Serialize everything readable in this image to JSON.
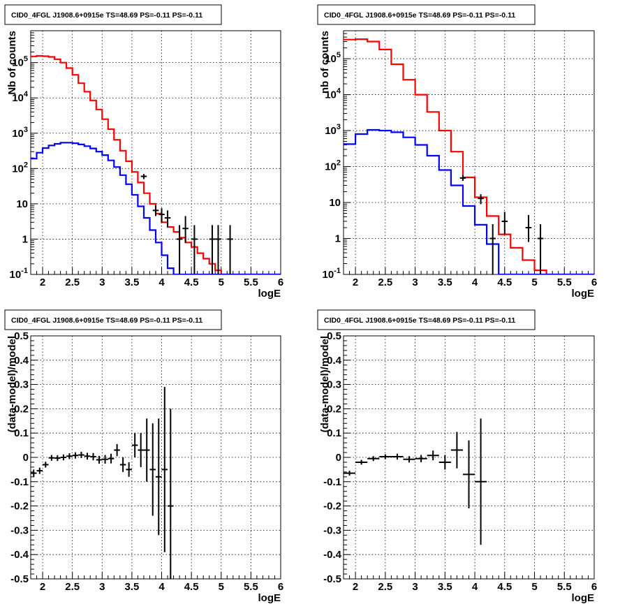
{
  "figure": {
    "background": "#ffffff"
  },
  "chart_data": [
    {
      "type": "line",
      "title": "CID0_4FGL J1908.6+0915e TS=48.69 PS=-0.11 PS=-0.11",
      "xlabel": "logE",
      "ylabel": "Nb of counts",
      "xlim": [
        1.8,
        6.0
      ],
      "ylim": [
        0.1,
        800000
      ],
      "yscale": "log",
      "grid": true,
      "xticks": [
        "2",
        "2.5",
        "3",
        "3.5",
        "4",
        "4.5",
        "5",
        "5.5",
        "6"
      ],
      "yticks": [
        "10^-1",
        "1",
        "10",
        "10^2",
        "10^3",
        "10^4",
        "10^5"
      ],
      "series": [
        {
          "kind": "step",
          "color": "#ff0000",
          "x": [
            1.8,
            1.9,
            2.0,
            2.1,
            2.2,
            2.3,
            2.4,
            2.5,
            2.6,
            2.7,
            2.8,
            2.9,
            3.0,
            3.1,
            3.2,
            3.3,
            3.4,
            3.5,
            3.6,
            3.7,
            3.8,
            3.9,
            4.0,
            4.1,
            4.2,
            4.3,
            4.4,
            4.5,
            4.6,
            4.7,
            4.8,
            4.9,
            5.0
          ],
          "values": [
            150000,
            155000,
            152000,
            145000,
            125000,
            100000,
            70000,
            45000,
            26000,
            15000,
            8500,
            4700,
            2500,
            1300,
            650,
            320,
            160,
            80,
            40,
            20,
            10,
            5.3,
            3.0,
            2.2,
            1.6,
            1.1,
            0.8,
            0.6,
            0.4,
            0.28,
            0.2,
            0.13,
            0.1
          ]
        },
        {
          "kind": "step",
          "color": "#0000ff",
          "x": [
            1.8,
            1.9,
            2.0,
            2.1,
            2.2,
            2.3,
            2.4,
            2.5,
            2.6,
            2.7,
            2.8,
            2.9,
            3.0,
            3.1,
            3.2,
            3.3,
            3.4,
            3.5,
            3.6,
            3.7,
            3.8,
            3.9,
            4.0,
            4.1,
            4.2
          ],
          "values": [
            190,
            280,
            380,
            450,
            500,
            540,
            540,
            520,
            480,
            430,
            370,
            300,
            240,
            170,
            110,
            65,
            36,
            18,
            8.5,
            4.0,
            1.8,
            0.8,
            0.35,
            0.15,
            0.1
          ]
        },
        {
          "kind": "errorbar",
          "color": "#000000",
          "points": [
            {
              "x": 3.7,
              "y": 60,
              "lo": 50,
              "hi": 70
            },
            {
              "x": 3.9,
              "y": 6.5,
              "lo": 4.5,
              "hi": 9
            },
            {
              "x": 4.0,
              "y": 5,
              "lo": 3,
              "hi": 7.5
            },
            {
              "x": 4.1,
              "y": 4,
              "lo": 2.2,
              "hi": 6.5
            },
            {
              "x": 4.3,
              "y": 1,
              "lo": 0.1,
              "hi": 2.5
            },
            {
              "x": 4.4,
              "y": 2,
              "lo": 0.8,
              "hi": 4.5
            },
            {
              "x": 4.55,
              "y": 1,
              "lo": 0.1,
              "hi": 2.5
            },
            {
              "x": 4.85,
              "y": 1,
              "lo": 0.1,
              "hi": 2.5
            },
            {
              "x": 4.95,
              "y": 1,
              "lo": 0.1,
              "hi": 2.5
            },
            {
              "x": 5.15,
              "y": 1,
              "lo": 0.1,
              "hi": 2.5
            }
          ]
        }
      ]
    },
    {
      "type": "line",
      "title": "CID0_4FGL J1908.6+0915e TS=48.69 PS=-0.11 PS=-0.11",
      "xlabel": "logE",
      "ylabel": "nb of counts",
      "xlim": [
        1.8,
        6.0
      ],
      "ylim": [
        0.1,
        600000
      ],
      "yscale": "log",
      "grid": true,
      "xticks": [
        "2",
        "2.5",
        "3",
        "3.5",
        "4",
        "4.5",
        "5",
        "5.5",
        "6"
      ],
      "yticks": [
        "10^-1",
        "1",
        "10",
        "10^2",
        "10^3",
        "10^4",
        "10^5"
      ],
      "series": [
        {
          "kind": "step",
          "color": "#ff0000",
          "x": [
            1.8,
            2.0,
            2.2,
            2.4,
            2.6,
            2.8,
            3.0,
            3.2,
            3.4,
            3.6,
            3.8,
            4.0,
            4.2,
            4.4,
            4.6,
            4.8,
            5.0,
            5.2
          ],
          "values": [
            340000,
            350000,
            300000,
            180000,
            70000,
            26000,
            10000,
            3300,
            1000,
            260,
            50,
            14,
            4.2,
            1.3,
            0.55,
            0.25,
            0.13,
            0.1
          ]
        },
        {
          "kind": "step",
          "color": "#0000ff",
          "x": [
            1.8,
            2.0,
            2.2,
            2.4,
            2.6,
            2.8,
            3.0,
            3.2,
            3.4,
            3.6,
            3.8,
            4.0,
            4.2,
            4.4
          ],
          "values": [
            420,
            800,
            1050,
            1000,
            900,
            650,
            400,
            200,
            80,
            30,
            8,
            2.4,
            0.7,
            0.1
          ]
        },
        {
          "kind": "errorbar",
          "color": "#000000",
          "points": [
            {
              "x": 3.8,
              "y": 48,
              "lo": 40,
              "hi": 58
            },
            {
              "x": 4.1,
              "y": 13,
              "lo": 9,
              "hi": 17
            },
            {
              "x": 4.3,
              "y": 1,
              "lo": 0.1,
              "hi": 2.5
            },
            {
              "x": 4.5,
              "y": 3,
              "lo": 1.3,
              "hi": 5.5
            },
            {
              "x": 4.9,
              "y": 2,
              "lo": 0.8,
              "hi": 4.5
            },
            {
              "x": 5.1,
              "y": 1,
              "lo": 0.1,
              "hi": 2.5
            }
          ]
        }
      ]
    },
    {
      "type": "scatter",
      "title": "CID0_4FGL J1908.6+0915e TS=48.69 PS=-0.11 PS=-0.11",
      "xlabel": "logE",
      "ylabel": "(data-model)/model",
      "xlim": [
        1.8,
        6.0
      ],
      "ylim": [
        -0.5,
        0.5
      ],
      "grid": true,
      "xticks": [
        "2",
        "2.5",
        "3",
        "3.5",
        "4",
        "4.5",
        "5",
        "5.5",
        "6"
      ],
      "yticks": [
        "-0.5",
        "-0.4",
        "-0.3",
        "-0.2",
        "-0.1",
        "0",
        "0.1",
        "0.2",
        "0.3",
        "0.4",
        "0.5"
      ],
      "series": [
        {
          "kind": "errorbar",
          "color": "#000000",
          "halfwidth": 0.05,
          "points": [
            {
              "x": 1.85,
              "y": -0.065,
              "err": 0.015
            },
            {
              "x": 1.95,
              "y": -0.055,
              "err": 0.013
            },
            {
              "x": 2.05,
              "y": -0.03,
              "err": 0.012
            },
            {
              "x": 2.15,
              "y": -0.002,
              "err": 0.012
            },
            {
              "x": 2.25,
              "y": -0.003,
              "err": 0.012
            },
            {
              "x": 2.35,
              "y": 0.0,
              "err": 0.012
            },
            {
              "x": 2.45,
              "y": 0.005,
              "err": 0.012
            },
            {
              "x": 2.55,
              "y": 0.008,
              "err": 0.013
            },
            {
              "x": 2.65,
              "y": 0.01,
              "err": 0.013
            },
            {
              "x": 2.75,
              "y": 0.005,
              "err": 0.014
            },
            {
              "x": 2.85,
              "y": 0.003,
              "err": 0.015
            },
            {
              "x": 2.95,
              "y": -0.01,
              "err": 0.016
            },
            {
              "x": 3.05,
              "y": -0.008,
              "err": 0.018
            },
            {
              "x": 3.15,
              "y": -0.005,
              "err": 0.02
            },
            {
              "x": 3.25,
              "y": 0.03,
              "err": 0.025
            },
            {
              "x": 3.35,
              "y": -0.03,
              "err": 0.03
            },
            {
              "x": 3.45,
              "y": -0.05,
              "err": 0.03
            },
            {
              "x": 3.55,
              "y": 0.05,
              "err": 0.05
            },
            {
              "x": 3.65,
              "y": 0.03,
              "err": 0.07
            },
            {
              "x": 3.75,
              "y": 0.03,
              "err": 0.13
            },
            {
              "x": 3.85,
              "y": -0.05,
              "err": 0.19
            },
            {
              "x": 3.95,
              "y": -0.08,
              "err": 0.24
            },
            {
              "x": 4.05,
              "y": -0.05,
              "err": 0.34
            },
            {
              "x": 4.15,
              "y": -0.2,
              "err": 0.4
            }
          ]
        }
      ]
    },
    {
      "type": "scatter",
      "title": "CID0_4FGL J1908.6+0915e TS=48.69 PS=-0.11 PS=-0.11",
      "xlabel": "logE",
      "ylabel": "(data-model)/model",
      "xlim": [
        1.8,
        6.0
      ],
      "ylim": [
        -0.5,
        0.5
      ],
      "grid": true,
      "xticks": [
        "2",
        "2.5",
        "3",
        "3.5",
        "4",
        "4.5",
        "5",
        "5.5",
        "6"
      ],
      "yticks": [
        "-0.5",
        "-0.4",
        "-0.3",
        "-0.2",
        "-0.1",
        "0",
        "0.1",
        "0.2",
        "0.3",
        "0.4",
        "0.5"
      ],
      "series": [
        {
          "kind": "errorbar",
          "color": "#000000",
          "halfwidth": 0.1,
          "points": [
            {
              "x": 1.9,
              "y": -0.065,
              "err": 0.01
            },
            {
              "x": 2.1,
              "y": -0.02,
              "err": 0.01
            },
            {
              "x": 2.3,
              "y": -0.005,
              "err": 0.01
            },
            {
              "x": 2.5,
              "y": 0.003,
              "err": 0.01
            },
            {
              "x": 2.7,
              "y": 0.003,
              "err": 0.012
            },
            {
              "x": 2.9,
              "y": -0.008,
              "err": 0.013
            },
            {
              "x": 3.1,
              "y": -0.005,
              "err": 0.015
            },
            {
              "x": 3.3,
              "y": 0.008,
              "err": 0.02
            },
            {
              "x": 3.5,
              "y": -0.02,
              "err": 0.03
            },
            {
              "x": 3.7,
              "y": 0.03,
              "err": 0.075
            },
            {
              "x": 3.9,
              "y": -0.07,
              "err": 0.14
            },
            {
              "x": 4.1,
              "y": -0.1,
              "err": 0.26
            }
          ]
        }
      ]
    }
  ]
}
